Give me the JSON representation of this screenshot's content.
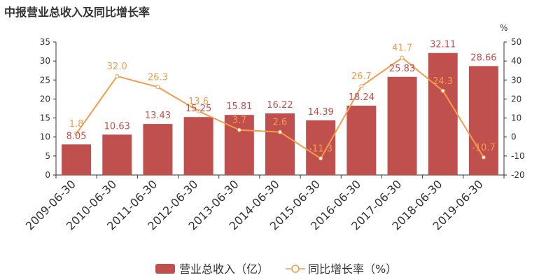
{
  "title": "中报营业总收入及同比增长率",
  "chart_data": {
    "type": "bar+line",
    "categories": [
      "2009-06-30",
      "2010-06-30",
      "2011-06-30",
      "2012-06-30",
      "2013-06-30",
      "2014-06-30",
      "2015-06-30",
      "2016-06-30",
      "2017-06-30",
      "2018-06-30",
      "2019-06-30"
    ],
    "series": [
      {
        "name": "营业总收入（亿）",
        "type": "bar",
        "axis": "left",
        "color": "#c0504d",
        "values": [
          8.05,
          10.63,
          13.43,
          15.25,
          15.81,
          16.22,
          14.39,
          18.24,
          25.83,
          32.11,
          28.66
        ],
        "labels": [
          "8.05",
          "10.63",
          "13.43",
          "15.25",
          "15.81",
          "16.22",
          "14.39",
          "18.24",
          "25.83",
          "32.11",
          "28.66"
        ]
      },
      {
        "name": "同比增长率（%）",
        "type": "line",
        "axis": "right",
        "color": "#f39c4b",
        "values": [
          1.8,
          32.0,
          26.3,
          13.6,
          3.7,
          2.6,
          -11.3,
          26.7,
          41.7,
          24.3,
          -10.7
        ],
        "labels": [
          "1.8",
          "32.0",
          "26.3",
          "13.6",
          "3.7",
          "2.6",
          "-11.3",
          "26.7",
          "41.7",
          "24.3",
          "-10.7"
        ]
      }
    ],
    "y_left": {
      "min": 0,
      "max": 35,
      "ticks": [
        "0",
        "5",
        "10",
        "15",
        "20",
        "25",
        "30",
        "35"
      ]
    },
    "y_right": {
      "min": -20,
      "max": 50,
      "ticks": [
        "-20",
        "-10",
        "0",
        "10",
        "20",
        "30",
        "40",
        "50"
      ],
      "unit": "%"
    },
    "legend": {
      "position": "bottom-center",
      "bar_label": "营业总收入（亿）",
      "line_label": "同比增长率（%）"
    }
  }
}
